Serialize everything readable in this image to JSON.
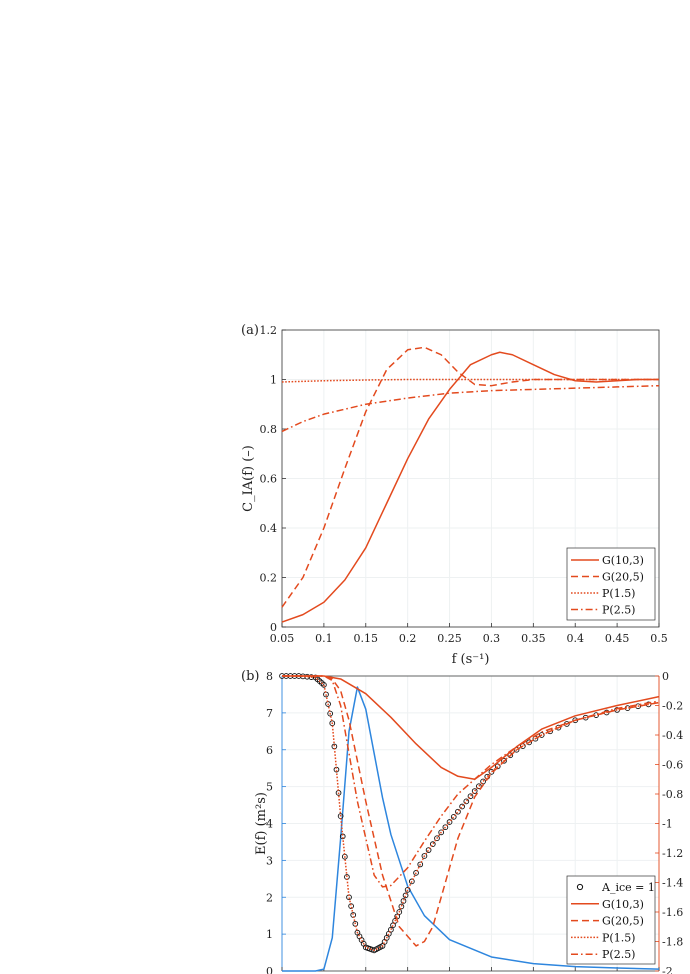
{
  "chart_data": [
    {
      "panel_label": "(a)",
      "type": "line",
      "xlabel": "f (s⁻¹)",
      "ylabel": "C_IA(f) (–)",
      "xlim": [
        0.05,
        0.5
      ],
      "ylim": [
        0,
        1.2
      ],
      "xticks": [
        "0.05",
        "0.1",
        "0.15",
        "0.2",
        "0.25",
        "0.3",
        "0.35",
        "0.4",
        "0.45",
        "0.5"
      ],
      "yticks": [
        "0",
        "0.2",
        "0.4",
        "0.6",
        "0.8",
        "1",
        "1.2"
      ],
      "grid": true,
      "legend_position": "bottom-right",
      "series": [
        {
          "name": "G(10,3)",
          "style": "solid",
          "color": "#e34a1e",
          "x": [
            0.05,
            0.075,
            0.1,
            0.125,
            0.15,
            0.175,
            0.2,
            0.225,
            0.25,
            0.275,
            0.3,
            0.31,
            0.325,
            0.35,
            0.375,
            0.4,
            0.425,
            0.45,
            0.475,
            0.5
          ],
          "y": [
            0.02,
            0.05,
            0.1,
            0.19,
            0.32,
            0.5,
            0.68,
            0.84,
            0.96,
            1.06,
            1.1,
            1.11,
            1.1,
            1.06,
            1.02,
            0.995,
            0.99,
            0.995,
            1.0,
            1.0
          ]
        },
        {
          "name": "G(20,5)",
          "style": "dashed",
          "color": "#e34a1e",
          "x": [
            0.05,
            0.075,
            0.1,
            0.125,
            0.15,
            0.175,
            0.2,
            0.22,
            0.24,
            0.26,
            0.28,
            0.3,
            0.325,
            0.35,
            0.375,
            0.4,
            0.45,
            0.5
          ],
          "y": [
            0.08,
            0.2,
            0.4,
            0.64,
            0.87,
            1.04,
            1.12,
            1.13,
            1.1,
            1.03,
            0.98,
            0.975,
            0.99,
            1.0,
            1.0,
            1.0,
            1.0,
            1.0
          ]
        },
        {
          "name": "P(1.5)",
          "style": "dotted",
          "color": "#e34a1e",
          "x": [
            0.05,
            0.1,
            0.15,
            0.2,
            0.3,
            0.4,
            0.5
          ],
          "y": [
            0.99,
            0.995,
            0.998,
            1.0,
            1.0,
            1.0,
            1.0
          ]
        },
        {
          "name": "P(2.5)",
          "style": "dashdot",
          "color": "#e34a1e",
          "x": [
            0.05,
            0.075,
            0.1,
            0.125,
            0.15,
            0.2,
            0.25,
            0.3,
            0.35,
            0.4,
            0.45,
            0.5
          ],
          "y": [
            0.79,
            0.83,
            0.86,
            0.88,
            0.9,
            0.925,
            0.945,
            0.955,
            0.96,
            0.965,
            0.97,
            0.975
          ]
        }
      ]
    },
    {
      "panel_label": "(b)",
      "type": "line",
      "ylabel_left": "E(f) (m²s)",
      "ylim_left": [
        0,
        8
      ],
      "yticks_left": [
        "0",
        "1",
        "2",
        "3",
        "4",
        "5",
        "6",
        "7",
        "8"
      ],
      "ylim_right": [
        -2,
        0
      ],
      "yticks_right": [
        "0",
        "-0.2",
        "-0.4",
        "-0.6",
        "-0.8",
        "-1",
        "-1.2",
        "-1.4",
        "-1.6",
        "-1.8",
        "-2"
      ],
      "xlim": [
        0.05,
        0.5
      ],
      "grid": true,
      "legend_position": "bottom-right",
      "left_color": "#2e86de",
      "right_color": "#e34a1e",
      "series": [
        {
          "name": "E(f)",
          "axis": "left",
          "style": "solid",
          "color": "#2e86de",
          "x": [
            0.05,
            0.06,
            0.07,
            0.08,
            0.09,
            0.1,
            0.11,
            0.12,
            0.13,
            0.14,
            0.15,
            0.16,
            0.17,
            0.18,
            0.2,
            0.22,
            0.25,
            0.3,
            0.35,
            0.4,
            0.45,
            0.5
          ],
          "y": [
            0,
            0,
            0,
            0,
            0,
            0.05,
            0.9,
            3.6,
            6.5,
            7.7,
            7.1,
            5.9,
            4.7,
            3.7,
            2.3,
            1.5,
            0.85,
            0.38,
            0.2,
            0.12,
            0.08,
            0.05
          ]
        },
        {
          "name": "A_ice = 1",
          "axis": "right",
          "style": "circles",
          "color": "#111111",
          "x": [
            0.05,
            0.07,
            0.09,
            0.1,
            0.11,
            0.12,
            0.13,
            0.14,
            0.15,
            0.16,
            0.17,
            0.18,
            0.19,
            0.2,
            0.22,
            0.24,
            0.26,
            0.28,
            0.3,
            0.33,
            0.36,
            0.4,
            0.45,
            0.5
          ],
          "y": [
            0,
            0,
            -0.01,
            -0.06,
            -0.32,
            -0.95,
            -1.5,
            -1.74,
            -1.84,
            -1.86,
            -1.83,
            -1.72,
            -1.6,
            -1.45,
            -1.22,
            -1.06,
            -0.92,
            -0.78,
            -0.65,
            -0.5,
            -0.4,
            -0.3,
            -0.23,
            -0.18
          ]
        },
        {
          "name": "G(10,3)",
          "axis": "right",
          "style": "solid",
          "color": "#e34a1e",
          "x": [
            0.05,
            0.1,
            0.12,
            0.15,
            0.18,
            0.21,
            0.24,
            0.26,
            0.28,
            0.3,
            0.33,
            0.36,
            0.4,
            0.45,
            0.5
          ],
          "y": [
            0,
            0,
            -0.02,
            -0.12,
            -0.28,
            -0.46,
            -0.62,
            -0.68,
            -0.7,
            -0.62,
            -0.48,
            -0.36,
            -0.27,
            -0.2,
            -0.14
          ]
        },
        {
          "name": "G(20,5)",
          "axis": "right",
          "style": "dashed",
          "color": "#e34a1e",
          "x": [
            0.05,
            0.1,
            0.11,
            0.12,
            0.13,
            0.15,
            0.17,
            0.19,
            0.21,
            0.22,
            0.23,
            0.24,
            0.26,
            0.28,
            0.3,
            0.33,
            0.36,
            0.4,
            0.45,
            0.5
          ],
          "y": [
            0,
            0,
            -0.02,
            -0.1,
            -0.3,
            -0.85,
            -1.35,
            -1.7,
            -1.83,
            -1.8,
            -1.7,
            -1.5,
            -1.1,
            -0.82,
            -0.66,
            -0.5,
            -0.4,
            -0.3,
            -0.23,
            -0.18
          ]
        },
        {
          "name": "P(1.5)",
          "axis": "right",
          "style": "dotted",
          "color": "#e34a1e",
          "x": [
            0.05,
            0.07,
            0.09,
            0.1,
            0.11,
            0.12,
            0.13,
            0.14,
            0.15,
            0.16,
            0.17,
            0.18,
            0.19,
            0.2,
            0.22,
            0.24,
            0.26,
            0.28,
            0.3,
            0.33,
            0.36,
            0.4,
            0.45,
            0.5
          ],
          "y": [
            0,
            0,
            -0.01,
            -0.06,
            -0.32,
            -0.95,
            -1.5,
            -1.74,
            -1.84,
            -1.86,
            -1.83,
            -1.72,
            -1.6,
            -1.45,
            -1.22,
            -1.06,
            -0.92,
            -0.78,
            -0.65,
            -0.5,
            -0.4,
            -0.3,
            -0.23,
            -0.18
          ]
        },
        {
          "name": "P(2.5)",
          "axis": "right",
          "style": "dashdot",
          "color": "#e34a1e",
          "x": [
            0.05,
            0.1,
            0.11,
            0.12,
            0.14,
            0.16,
            0.17,
            0.18,
            0.2,
            0.22,
            0.24,
            0.26,
            0.28,
            0.3,
            0.33,
            0.36,
            0.4,
            0.45,
            0.5
          ],
          "y": [
            0,
            0,
            -0.03,
            -0.2,
            -0.85,
            -1.35,
            -1.43,
            -1.42,
            -1.3,
            -1.12,
            -0.95,
            -0.8,
            -0.7,
            -0.6,
            -0.48,
            -0.38,
            -0.3,
            -0.22,
            -0.17
          ]
        }
      ]
    }
  ]
}
